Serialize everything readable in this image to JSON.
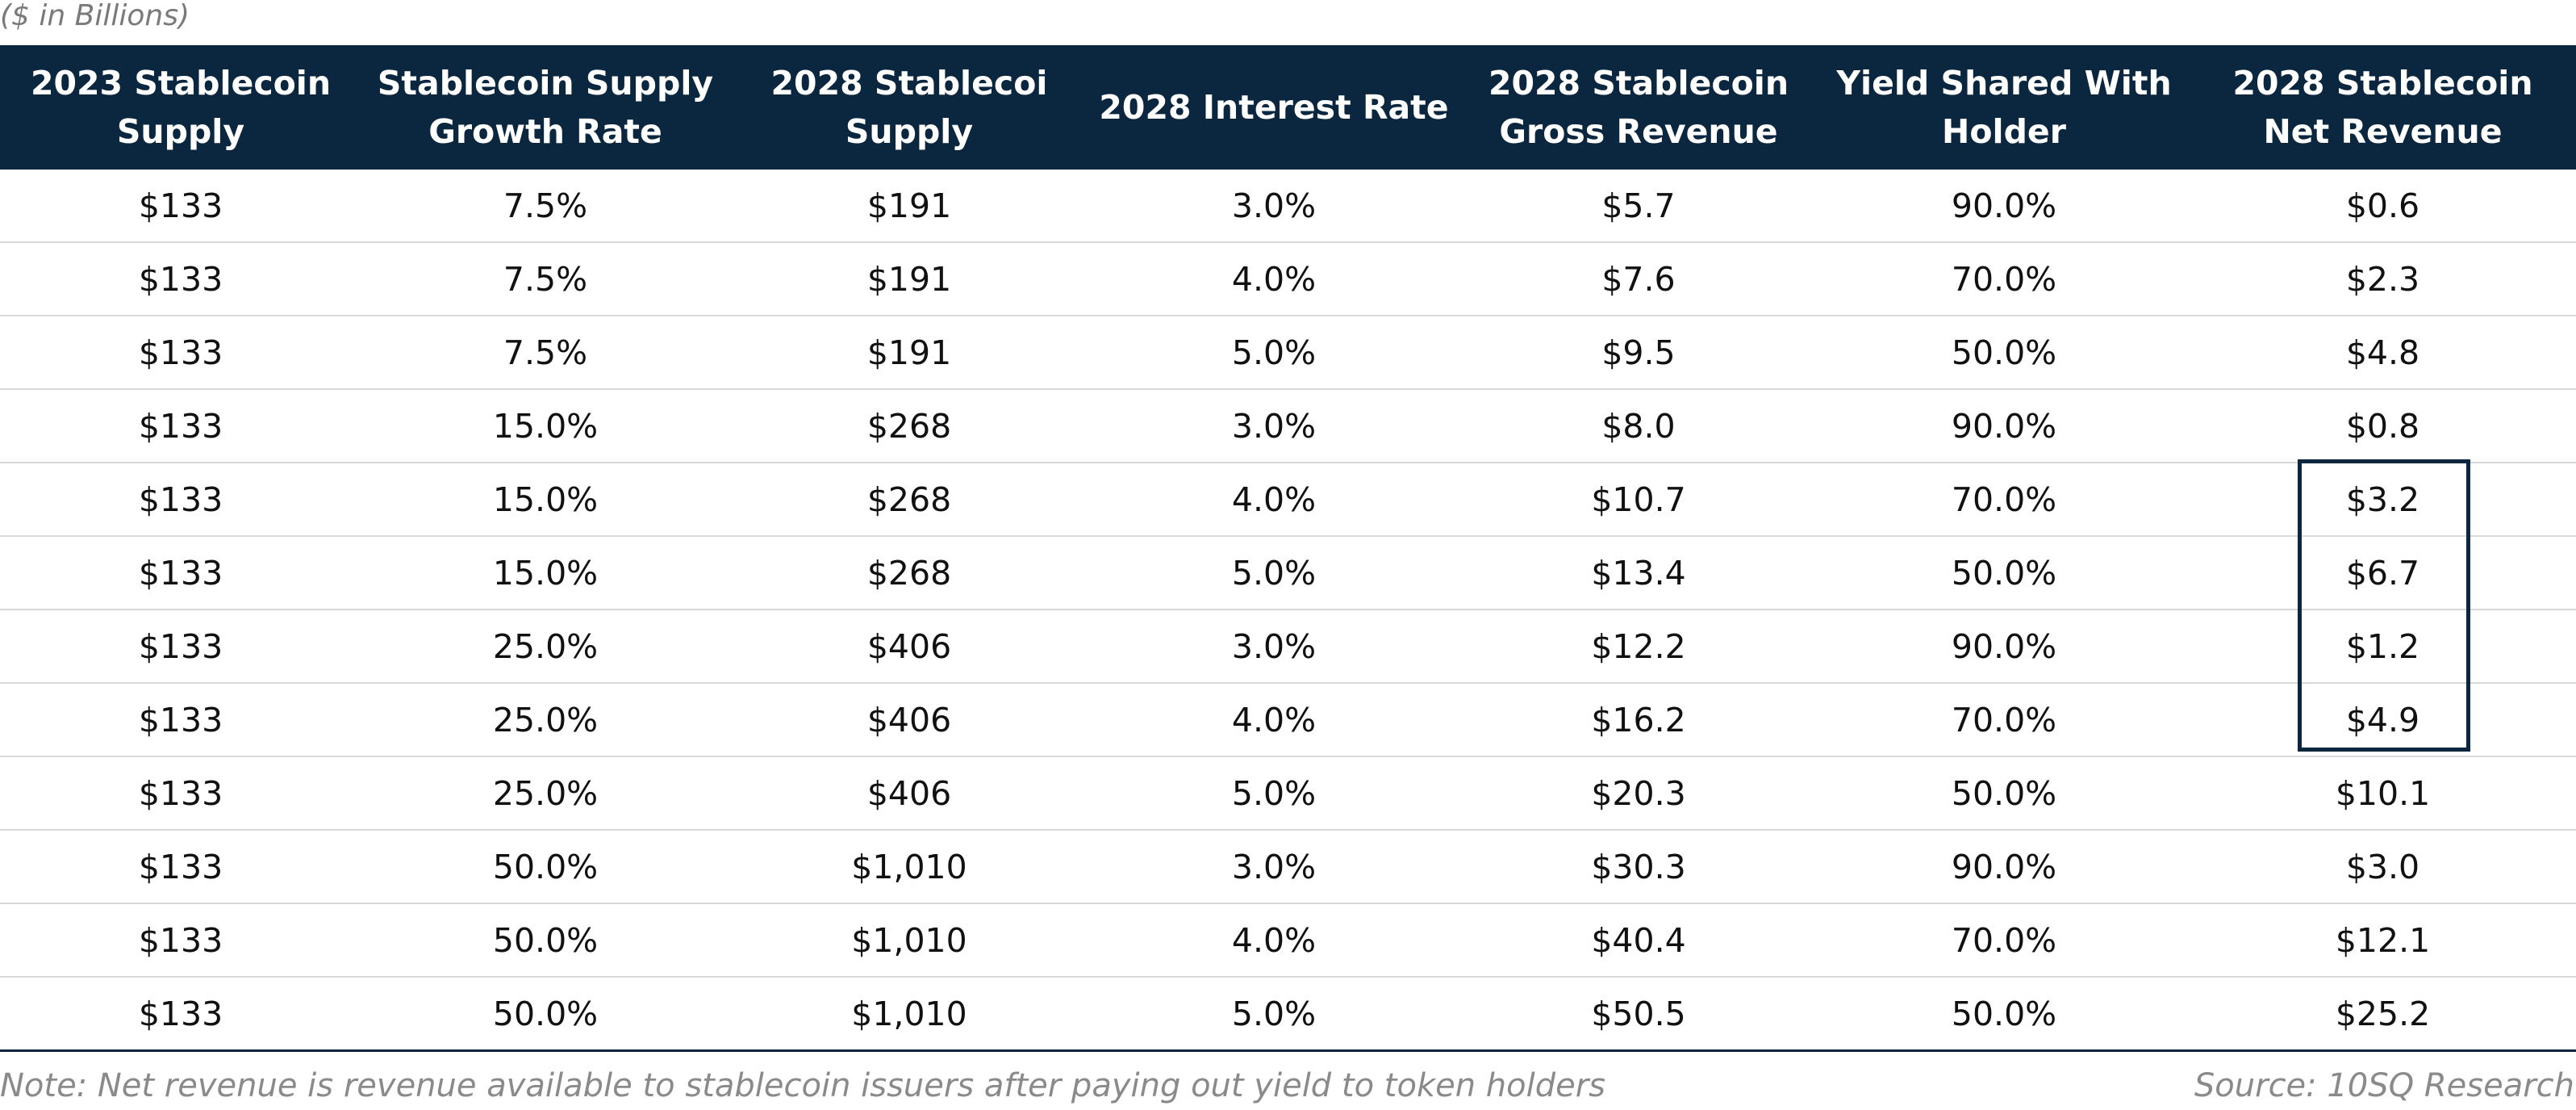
{
  "units_label": "($ in Billions)",
  "columns": [
    "2023 Stablecoin Supply",
    "Stablecoin Supply Growth Rate",
    "2028 Stablecoi Supply",
    "2028 Interest Rate",
    "2028 Stablecoin Gross Revenue",
    "Yield Shared With Holder",
    "2028 Stablecoin Net Revenue"
  ],
  "rows": [
    [
      "$133",
      "7.5%",
      "$191",
      "3.0%",
      "$5.7",
      "90.0%",
      "$0.6"
    ],
    [
      "$133",
      "7.5%",
      "$191",
      "4.0%",
      "$7.6",
      "70.0%",
      "$2.3"
    ],
    [
      "$133",
      "7.5%",
      "$191",
      "5.0%",
      "$9.5",
      "50.0%",
      "$4.8"
    ],
    [
      "$133",
      "15.0%",
      "$268",
      "3.0%",
      "$8.0",
      "90.0%",
      "$0.8"
    ],
    [
      "$133",
      "15.0%",
      "$268",
      "4.0%",
      "$10.7",
      "70.0%",
      "$3.2"
    ],
    [
      "$133",
      "15.0%",
      "$268",
      "5.0%",
      "$13.4",
      "50.0%",
      "$6.7"
    ],
    [
      "$133",
      "25.0%",
      "$406",
      "3.0%",
      "$12.2",
      "90.0%",
      "$1.2"
    ],
    [
      "$133",
      "25.0%",
      "$406",
      "4.0%",
      "$16.2",
      "70.0%",
      "$4.9"
    ],
    [
      "$133",
      "25.0%",
      "$406",
      "5.0%",
      "$20.3",
      "50.0%",
      "$10.1"
    ],
    [
      "$133",
      "50.0%",
      "$1,010",
      "3.0%",
      "$30.3",
      "90.0%",
      "$3.0"
    ],
    [
      "$133",
      "50.0%",
      "$1,010",
      "4.0%",
      "$40.4",
      "70.0%",
      "$12.1"
    ],
    [
      "$133",
      "50.0%",
      "$1,010",
      "5.0%",
      "$50.5",
      "50.0%",
      "$25.2"
    ]
  ],
  "footer": {
    "note": "Note: Net revenue is revenue available to stablecoin issuers after paying out yield to token holders",
    "source": "Source: 10SQ Research"
  },
  "colors": {
    "header_bg": "#0b2740",
    "header_text": "#ffffff",
    "row_divider": "#d9d9d9",
    "muted_text": "#8a8a8a"
  }
}
